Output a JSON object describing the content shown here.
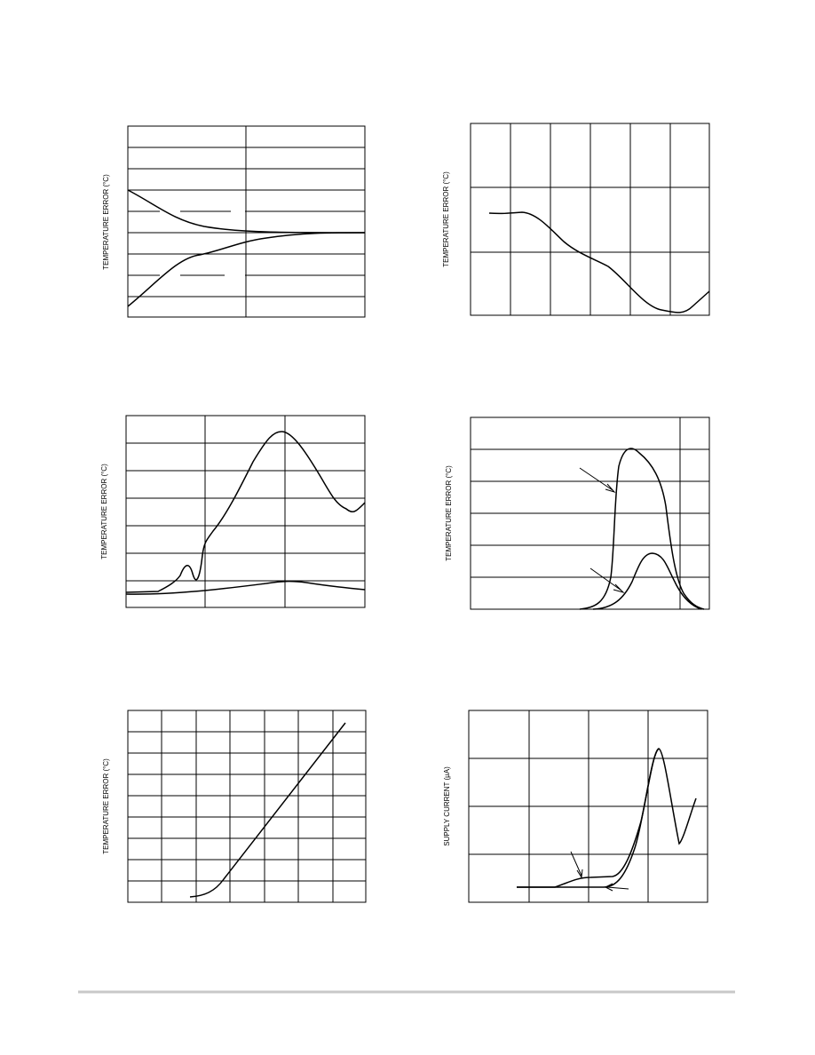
{
  "charts": [
    {
      "y_label": "TEMPERATURE ERROR (°C)"
    },
    {
      "y_label": "TEMPERATURE ERROR (°C)"
    },
    {
      "y_label": "TEMPERATURE ERROR (°C)"
    },
    {
      "y_label": "TEMPERATURE ERROR (°C)"
    },
    {
      "y_label": "TEMPERATURE ERROR (°C)"
    },
    {
      "y_label": "SUPPLY CURRENT (µA)"
    }
  ]
}
